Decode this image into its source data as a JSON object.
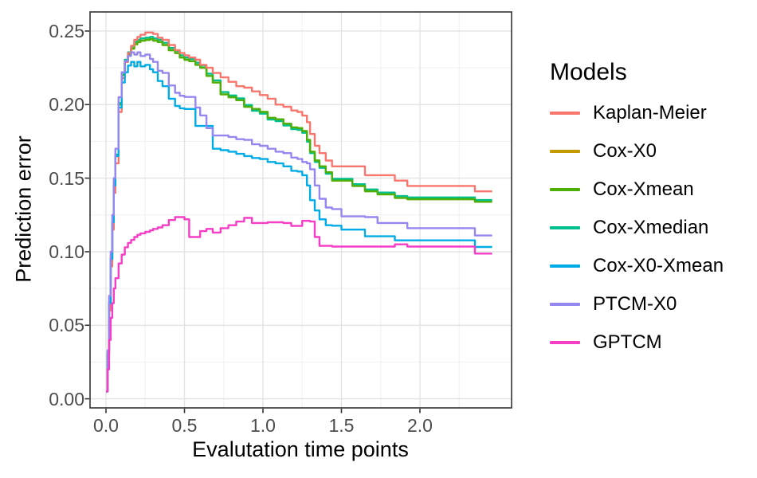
{
  "figure": {
    "x_axis": {
      "title": "Evalutation time points",
      "tick_labels": [
        "0.0",
        "0.5",
        "1.0",
        "1.5",
        "2.0"
      ],
      "tick_values": [
        0,
        0.5,
        1.0,
        1.5,
        2.0
      ],
      "minor_ticks": [
        0.25,
        0.75,
        1.25,
        1.75,
        2.25
      ]
    },
    "y_axis": {
      "title": "Prediction error",
      "tick_labels": [
        "0.00",
        "0.05",
        "0.10",
        "0.15",
        "0.20",
        "0.25"
      ],
      "tick_values": [
        0,
        0.05,
        0.1,
        0.15,
        0.2,
        0.25
      ],
      "minor_ticks": [
        0.025,
        0.075,
        0.125,
        0.175,
        0.225
      ]
    },
    "legend": {
      "title": "Models",
      "entries": [
        {
          "label": "Kaplan-Meier",
          "color": "#F8766D"
        },
        {
          "label": "Cox-X0",
          "color": "#C49A00"
        },
        {
          "label": "Cox-Xmean",
          "color": "#4CB009"
        },
        {
          "label": "Cox-Xmedian",
          "color": "#00BF8E"
        },
        {
          "label": "Cox-X0-Xmean",
          "color": "#00ACE6"
        },
        {
          "label": "PTCM-X0",
          "color": "#9487F0"
        },
        {
          "label": "GPTCM",
          "color": "#F53DC6"
        }
      ]
    },
    "style": {
      "panel_border": "#333333",
      "major_grid": "#E3E3E3",
      "minor_grid": "#F1F1F1",
      "tick_color": "#333333",
      "tick_text": "#4D4D4D"
    }
  },
  "chart_data": {
    "type": "line",
    "step": true,
    "title": "",
    "xlabel": "Evalutation time points",
    "ylabel": "Prediction error",
    "xlim": [
      -0.105,
      2.585
    ],
    "ylim": [
      -0.008,
      0.263
    ],
    "grid": true,
    "legend_position": "right",
    "legend_title": "Models",
    "x": [
      0,
      0.01,
      0.02,
      0.03,
      0.04,
      0.05,
      0.06,
      0.08,
      0.1,
      0.12,
      0.14,
      0.16,
      0.18,
      0.2,
      0.22,
      0.25,
      0.28,
      0.3,
      0.33,
      0.36,
      0.4,
      0.44,
      0.47,
      0.5,
      0.53,
      0.57,
      0.6,
      0.64,
      0.68,
      0.73,
      0.78,
      0.83,
      0.88,
      0.93,
      0.98,
      1.03,
      1.08,
      1.13,
      1.18,
      1.22,
      1.25,
      1.28,
      1.3,
      1.33,
      1.36,
      1.4,
      1.44,
      1.5,
      1.57,
      1.65,
      1.73,
      1.84,
      1.92,
      2.05,
      2.2,
      2.35,
      2.46
    ],
    "series": [
      {
        "name": "Kaplan-Meier",
        "color": "#F8766D",
        "values": [
          0.005,
          0.03,
          0.06,
          0.09,
          0.115,
          0.14,
          0.16,
          0.195,
          0.218,
          0.229,
          0.235,
          0.24,
          0.244,
          0.246,
          0.2475,
          0.249,
          0.249,
          0.248,
          0.2455,
          0.244,
          0.2405,
          0.237,
          0.235,
          0.2335,
          0.232,
          0.2305,
          0.227,
          0.225,
          0.2215,
          0.2185,
          0.2155,
          0.2125,
          0.2115,
          0.209,
          0.2065,
          0.204,
          0.2,
          0.1985,
          0.196,
          0.195,
          0.1925,
          0.188,
          0.18,
          0.172,
          0.167,
          0.162,
          0.158,
          0.158,
          0.158,
          0.152,
          0.152,
          0.1483,
          0.1447,
          0.1447,
          0.1447,
          0.141,
          0.141
        ]
      },
      {
        "name": "Cox-X0",
        "color": "#C49A00",
        "values": [
          0.005,
          0.032,
          0.065,
          0.095,
          0.12,
          0.145,
          0.165,
          0.2,
          0.22,
          0.229,
          0.234,
          0.238,
          0.241,
          0.2425,
          0.2435,
          0.244,
          0.2445,
          0.2435,
          0.2425,
          0.2405,
          0.237,
          0.235,
          0.232,
          0.2305,
          0.2295,
          0.227,
          0.225,
          0.2195,
          0.215,
          0.207,
          0.205,
          0.203,
          0.1985,
          0.197,
          0.195,
          0.191,
          0.19,
          0.187,
          0.1845,
          0.184,
          0.182,
          0.176,
          0.168,
          0.162,
          0.158,
          0.154,
          0.1483,
          0.1483,
          0.1447,
          0.1411,
          0.139,
          0.1366,
          0.1357,
          0.1357,
          0.1357,
          0.1339,
          0.1339
        ]
      },
      {
        "name": "Cox-Xmean",
        "color": "#4CB009",
        "values": [
          0.005,
          0.032,
          0.065,
          0.095,
          0.12,
          0.145,
          0.165,
          0.2,
          0.22,
          0.229,
          0.234,
          0.238,
          0.241,
          0.2425,
          0.2435,
          0.244,
          0.2445,
          0.2435,
          0.2425,
          0.2405,
          0.237,
          0.235,
          0.232,
          0.2305,
          0.2295,
          0.227,
          0.225,
          0.2195,
          0.215,
          0.207,
          0.205,
          0.203,
          0.1985,
          0.197,
          0.195,
          0.191,
          0.19,
          0.187,
          0.1845,
          0.184,
          0.182,
          0.176,
          0.168,
          0.162,
          0.158,
          0.154,
          0.1483,
          0.1483,
          0.1447,
          0.1411,
          0.139,
          0.1366,
          0.1357,
          0.1357,
          0.1357,
          0.1339,
          0.1339
        ]
      },
      {
        "name": "Cox-Xmedian",
        "color": "#00BF8E",
        "values": [
          0.005,
          0.032,
          0.066,
          0.096,
          0.121,
          0.146,
          0.166,
          0.201,
          0.2215,
          0.2305,
          0.2355,
          0.2395,
          0.2425,
          0.244,
          0.245,
          0.2455,
          0.246,
          0.245,
          0.244,
          0.242,
          0.2385,
          0.2365,
          0.2335,
          0.232,
          0.231,
          0.2285,
          0.2265,
          0.221,
          0.2165,
          0.2085,
          0.2062,
          0.2042,
          0.1997,
          0.1958,
          0.1938,
          0.1898,
          0.1888,
          0.1858,
          0.1833,
          0.1828,
          0.1808,
          0.1748,
          0.167,
          0.161,
          0.157,
          0.153,
          0.1495,
          0.1495,
          0.1459,
          0.1423,
          0.1402,
          0.1378,
          0.1369,
          0.1369,
          0.1369,
          0.1351,
          0.1351
        ]
      },
      {
        "name": "Cox-X0-Xmean",
        "color": "#00ACE6",
        "values": [
          0.005,
          0.03,
          0.065,
          0.095,
          0.12,
          0.145,
          0.165,
          0.198,
          0.215,
          0.222,
          0.2265,
          0.229,
          0.226,
          0.229,
          0.226,
          0.227,
          0.224,
          0.222,
          0.216,
          0.2125,
          0.204,
          0.199,
          0.1975,
          0.197,
          0.197,
          0.1855,
          0.1855,
          0.1855,
          0.17,
          0.169,
          0.168,
          0.1665,
          0.165,
          0.1637,
          0.163,
          0.161,
          0.16,
          0.158,
          0.155,
          0.1545,
          0.152,
          0.145,
          0.135,
          0.128,
          0.122,
          0.118,
          0.1177,
          0.115,
          0.115,
          0.1105,
          0.1105,
          0.1077,
          0.1077,
          0.1077,
          0.1077,
          0.1032,
          0.1032
        ]
      },
      {
        "name": "PTCM-X0",
        "color": "#9487F0",
        "values": [
          0.005,
          0.033,
          0.07,
          0.1,
          0.125,
          0.15,
          0.17,
          0.205,
          0.222,
          0.2295,
          0.233,
          0.2355,
          0.234,
          0.2355,
          0.233,
          0.234,
          0.231,
          0.229,
          0.223,
          0.2215,
          0.213,
          0.208,
          0.206,
          0.2052,
          0.2052,
          0.198,
          0.1926,
          0.184,
          0.179,
          0.179,
          0.178,
          0.1765,
          0.176,
          0.173,
          0.172,
          0.17,
          0.168,
          0.167,
          0.164,
          0.163,
          0.161,
          0.16,
          0.156,
          0.145,
          0.136,
          0.13,
          0.129,
          0.124,
          0.124,
          0.1235,
          0.1195,
          0.1195,
          0.116,
          0.116,
          0.116,
          0.111,
          0.111
        ]
      },
      {
        "name": "GPTCM",
        "color": "#F53DC6",
        "values": [
          0.005,
          0.02,
          0.04,
          0.055,
          0.065,
          0.075,
          0.082,
          0.092,
          0.098,
          0.103,
          0.106,
          0.108,
          0.11,
          0.1115,
          0.1125,
          0.1135,
          0.1145,
          0.1155,
          0.1165,
          0.118,
          0.1215,
          0.1235,
          0.1235,
          0.122,
          0.11,
          0.11,
          0.114,
          0.1155,
          0.113,
          0.116,
          0.118,
          0.1205,
          0.123,
          0.1195,
          0.1195,
          0.12,
          0.12,
          0.1195,
          0.1175,
          0.1175,
          0.121,
          0.121,
          0.1205,
          0.11,
          0.104,
          0.104,
          0.1035,
          0.1035,
          0.1035,
          0.1035,
          0.1035,
          0.105,
          0.1035,
          0.1035,
          0.1035,
          0.0987,
          0.0987
        ]
      }
    ]
  }
}
